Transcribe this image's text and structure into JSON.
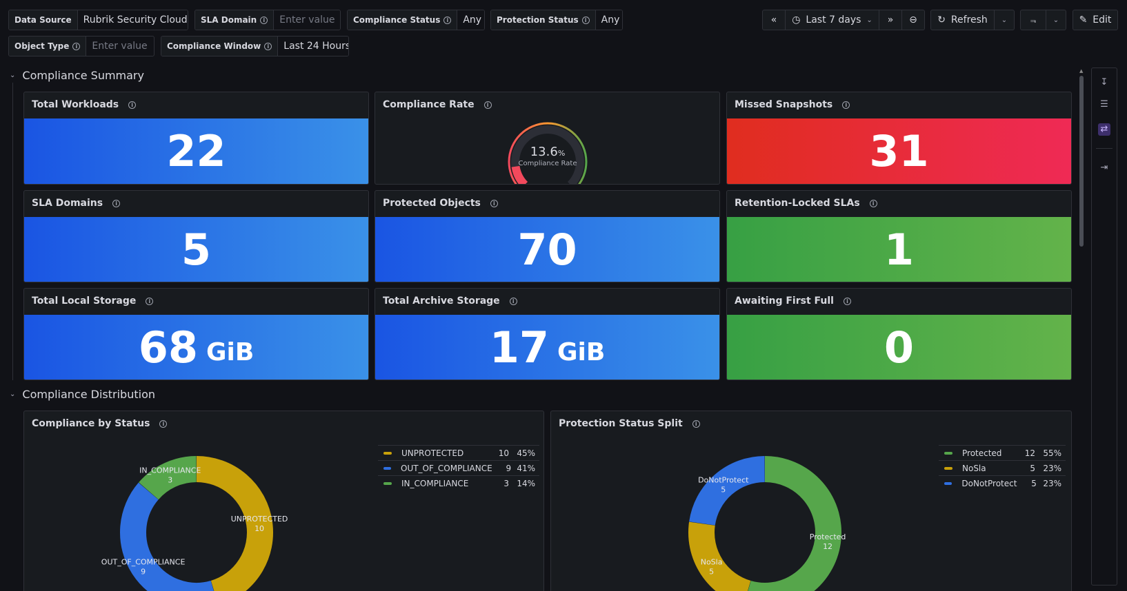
{
  "variables": {
    "data_source": {
      "label": "Data Source",
      "value": "Rubrik Security Cloud"
    },
    "sla_domain": {
      "label": "SLA Domain",
      "placeholder": "Enter value"
    },
    "compliance_status": {
      "label": "Compliance Status",
      "value": "Any"
    },
    "protection_status": {
      "label": "Protection Status",
      "value": "Any"
    },
    "object_type": {
      "label": "Object Type",
      "placeholder": "Enter value"
    },
    "compliance_window": {
      "label": "Compliance Window",
      "value": "Last 24 Hours"
    }
  },
  "toolbar": {
    "time_range": "Last 7 days",
    "refresh_label": "Refresh",
    "edit_label": "Edit"
  },
  "sections": {
    "summary_title": "Compliance Summary",
    "distribution_title": "Compliance Distribution"
  },
  "stats": [
    {
      "title": "Total Workloads",
      "value": "22",
      "unit": "",
      "color": "blue"
    },
    {
      "title": "Missed Snapshots",
      "value": "31",
      "unit": "",
      "color": "red"
    },
    {
      "title": "SLA Domains",
      "value": "5",
      "unit": "",
      "color": "blue"
    },
    {
      "title": "Protected Objects",
      "value": "70",
      "unit": "",
      "color": "blue"
    },
    {
      "title": "Retention-Locked SLAs",
      "value": "1",
      "unit": "",
      "color": "green"
    },
    {
      "title": "Total Local Storage",
      "value": "68",
      "unit": "GiB",
      "color": "blue"
    },
    {
      "title": "Total Archive Storage",
      "value": "17",
      "unit": "GiB",
      "color": "blue"
    },
    {
      "title": "Awaiting First Full",
      "value": "0",
      "unit": "",
      "color": "green"
    }
  ],
  "gauge": {
    "title": "Compliance Rate",
    "value": "13.6",
    "unit": "%",
    "label": "Compliance Rate",
    "fraction": 0.136
  },
  "colors": {
    "green": "#56a64b",
    "yellow": "#c8a10a",
    "blue": "#2f6fe0",
    "red": "#f2495c",
    "orange": "#ff9830"
  },
  "chart_data": [
    {
      "type": "pie",
      "title": "Compliance by Status",
      "series": [
        {
          "name": "UNPROTECTED",
          "value": 10,
          "percent": "45%",
          "color": "#c8a10a"
        },
        {
          "name": "OUT_OF_COMPLIANCE",
          "value": 9,
          "percent": "41%",
          "color": "#2f6fe0"
        },
        {
          "name": "IN_COMPLIANCE",
          "value": 3,
          "percent": "14%",
          "color": "#56a64b"
        }
      ]
    },
    {
      "type": "pie",
      "title": "Protection Status Split",
      "series": [
        {
          "name": "Protected",
          "value": 12,
          "percent": "55%",
          "color": "#56a64b"
        },
        {
          "name": "NoSla",
          "value": 5,
          "percent": "23%",
          "color": "#c8a10a"
        },
        {
          "name": "DoNotProtect",
          "value": 5,
          "percent": "23%",
          "color": "#2f6fe0"
        }
      ]
    }
  ]
}
